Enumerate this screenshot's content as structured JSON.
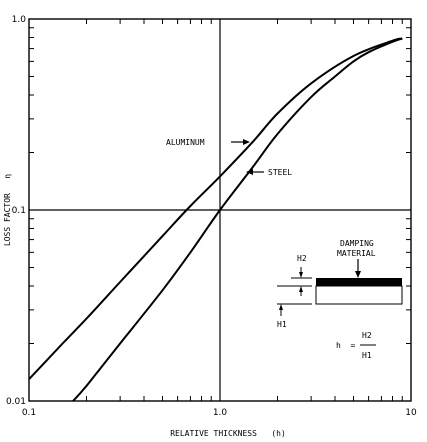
{
  "chart_data": {
    "type": "line",
    "xlabel": "RELATIVE THICKNESS   (h)",
    "ylabel": "LOSS FACTOR   η",
    "xscale": "log",
    "yscale": "log",
    "xlim": [
      0.1,
      10
    ],
    "ylim": [
      0.01,
      1.0
    ],
    "x_tick_labels": [
      "0.1",
      "1.0",
      "10"
    ],
    "y_tick_labels": [
      "0.01",
      "0.1",
      "1.0"
    ],
    "grid": "major lines at x=1.0 and y=0.1",
    "series": [
      {
        "name": "ALUMINUM",
        "x": [
          0.1,
          0.15,
          0.2,
          0.3,
          0.5,
          0.7,
          1.0,
          1.5,
          2.0,
          3.0,
          5.0,
          8.0,
          9.0
        ],
        "y": [
          0.013,
          0.02,
          0.027,
          0.042,
          0.073,
          0.105,
          0.15,
          0.23,
          0.32,
          0.46,
          0.64,
          0.77,
          0.79
        ]
      },
      {
        "name": "STEEL",
        "x": [
          0.17,
          0.2,
          0.3,
          0.5,
          0.7,
          1.0,
          1.5,
          2.0,
          3.0,
          4.0,
          5.0,
          6.0,
          8.0,
          9.0
        ],
        "y": [
          0.01,
          0.012,
          0.02,
          0.038,
          0.06,
          0.1,
          0.17,
          0.25,
          0.39,
          0.5,
          0.6,
          0.67,
          0.76,
          0.79
        ]
      }
    ],
    "annotations": {
      "aluminum": "ALUMINUM",
      "steel": "STEEL",
      "damping_1": "DAMPING",
      "damping_2": "MATERIAL",
      "h2": "H2",
      "h1": "H1",
      "formula_lhs": "h  =",
      "formula_num": "H2",
      "formula_den": "H1"
    }
  }
}
